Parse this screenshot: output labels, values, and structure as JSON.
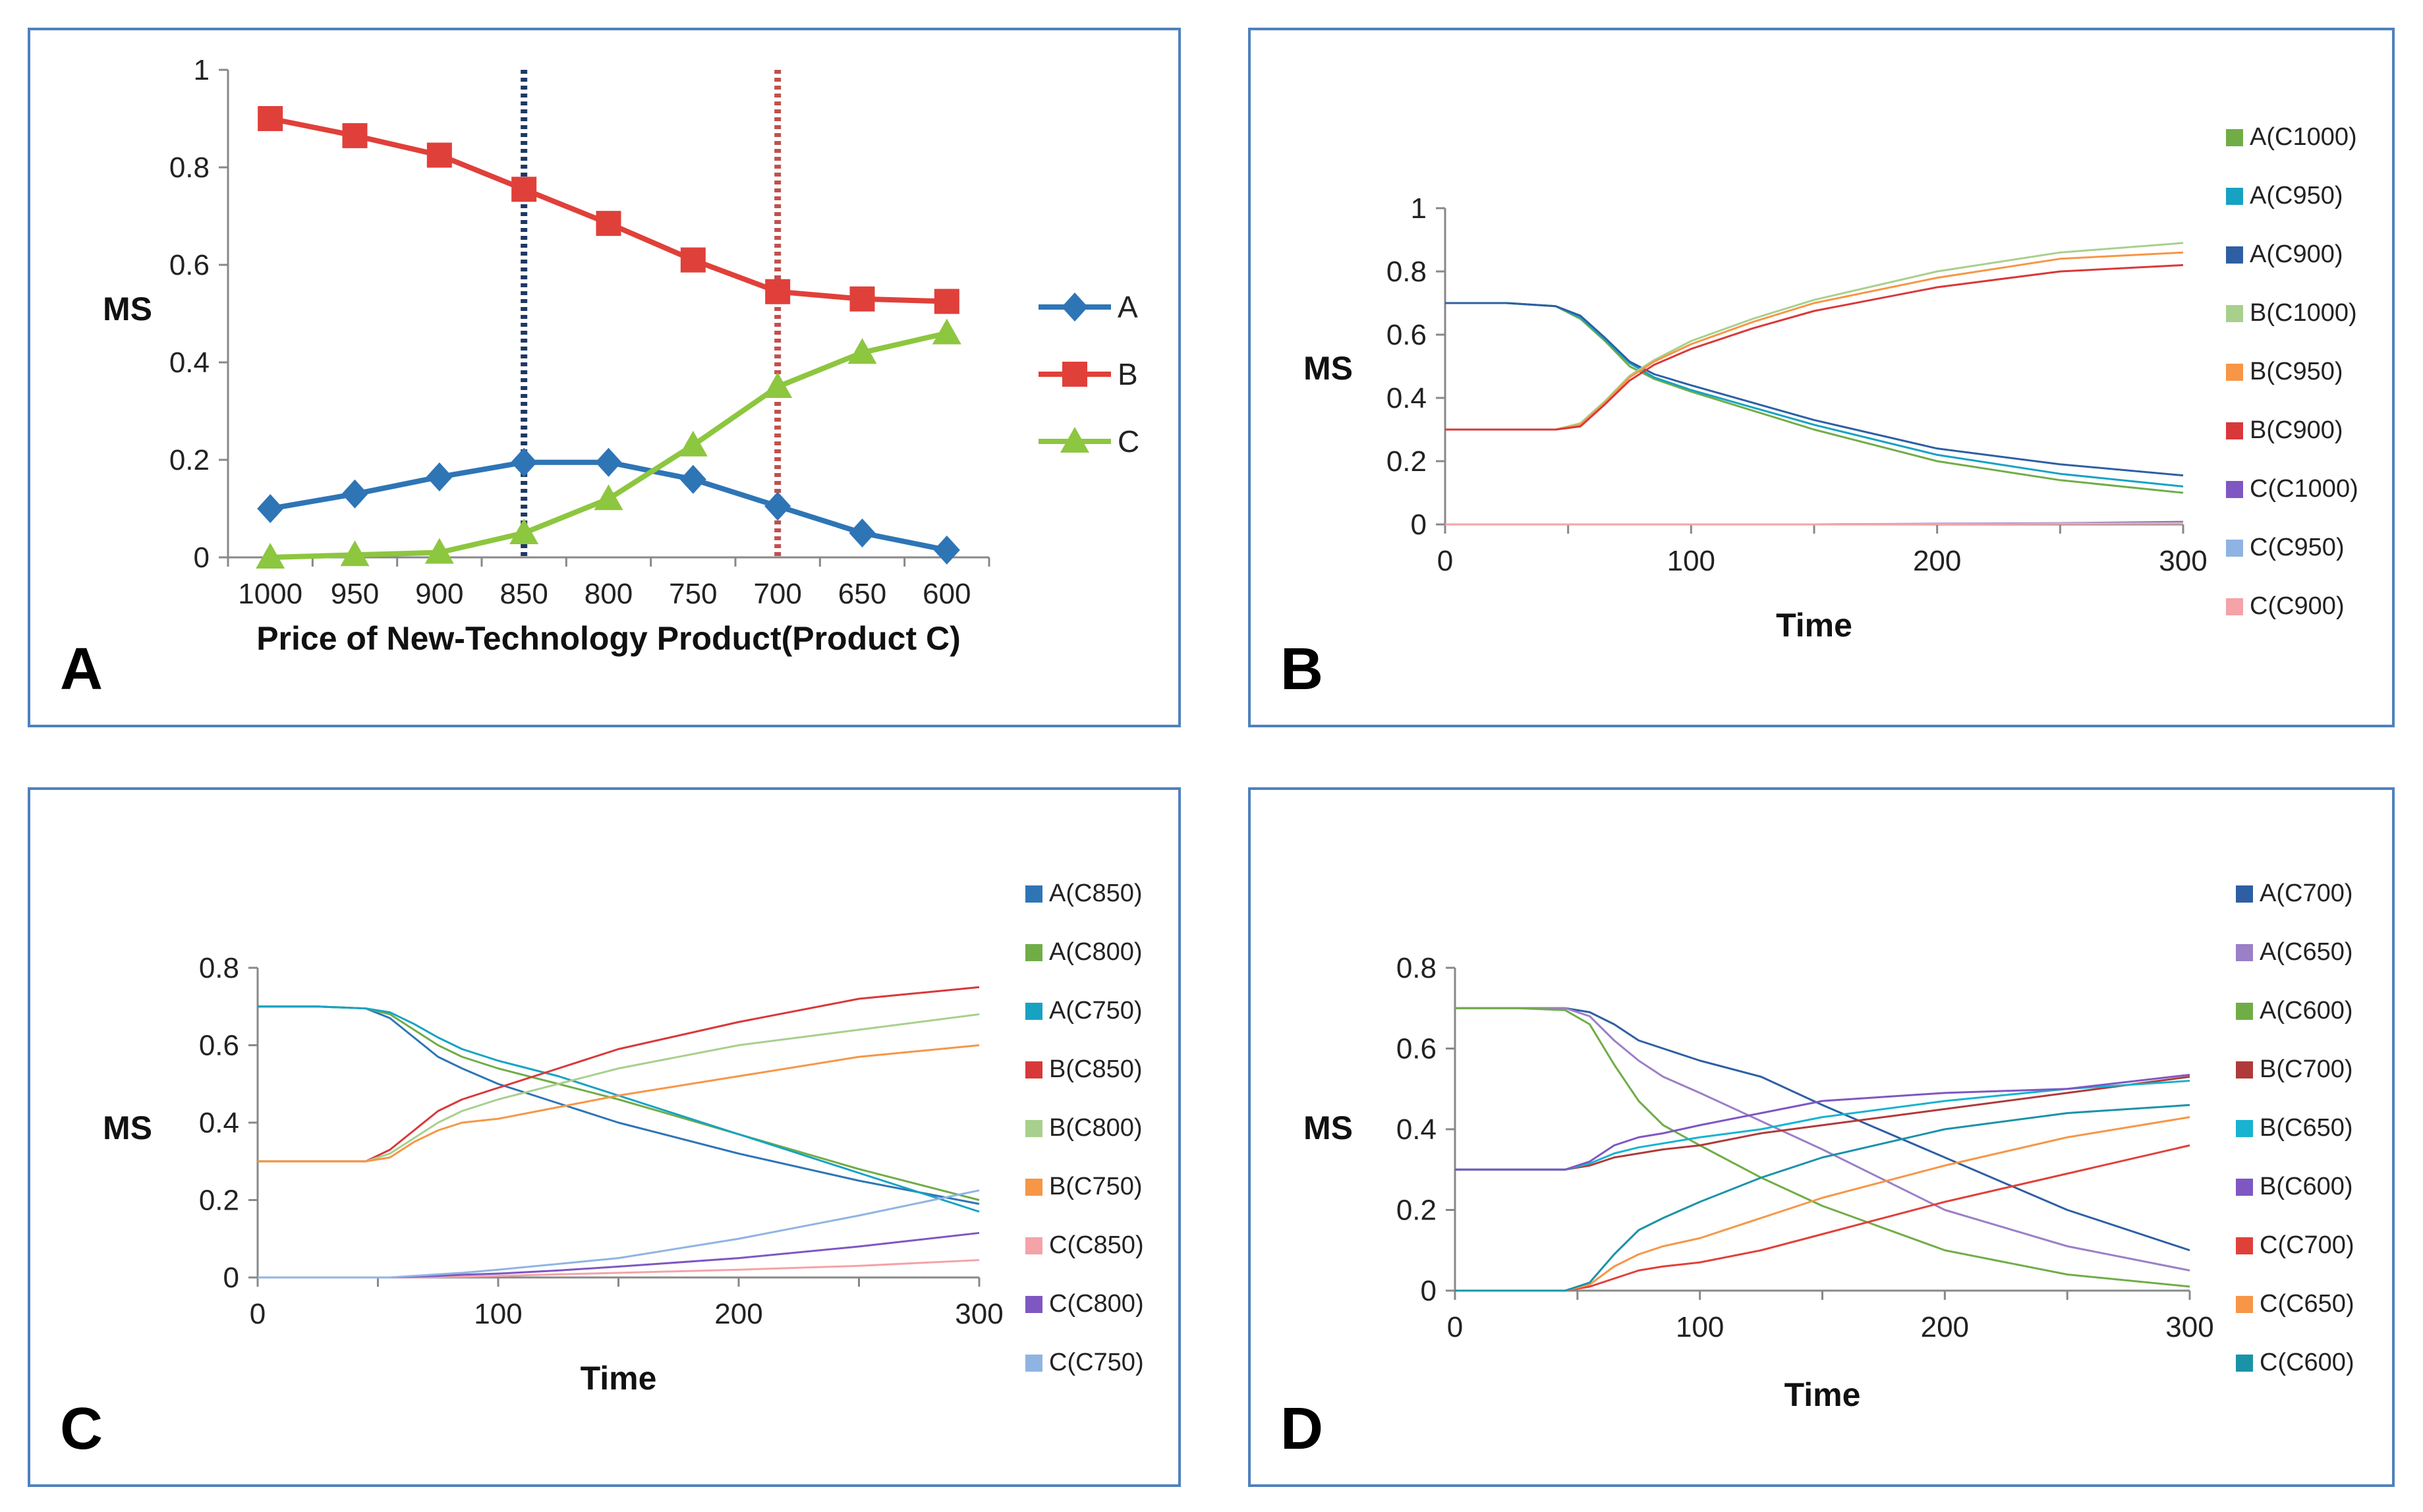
{
  "chart_data": [
    {
      "panel": "A",
      "type": "line",
      "ylabel": "MS",
      "xlabel": "Price of New-Technology Product(Product C)",
      "categories": [
        "1000",
        "950",
        "900",
        "850",
        "800",
        "750",
        "700",
        "650",
        "600"
      ],
      "ylim": [
        0,
        1
      ],
      "yticks": [
        "0",
        "0.2",
        "0.4",
        "0.6",
        "0.8",
        "1"
      ],
      "reference_lines": [
        {
          "at": "850",
          "color": "#1f3864"
        },
        {
          "at": "700",
          "color": "#c0504d"
        }
      ],
      "series": [
        {
          "name": "A",
          "color": "#2e75b6",
          "marker": "diamond",
          "values": [
            0.1,
            0.13,
            0.165,
            0.195,
            0.195,
            0.16,
            0.105,
            0.05,
            0.015
          ]
        },
        {
          "name": "B",
          "color": "#e0403a",
          "marker": "square",
          "values": [
            0.9,
            0.865,
            0.825,
            0.755,
            0.685,
            0.61,
            0.545,
            0.53,
            0.525
          ]
        },
        {
          "name": "C",
          "color": "#8dc63f",
          "marker": "triangle",
          "values": [
            0.0,
            0.005,
            0.01,
            0.05,
            0.12,
            0.23,
            0.35,
            0.42,
            0.46
          ]
        }
      ],
      "legend_position": "right"
    },
    {
      "panel": "B",
      "type": "line",
      "ylabel": "MS",
      "xlabel": "Time",
      "xlim": [
        0,
        300
      ],
      "ylim": [
        0,
        1
      ],
      "xticks": [
        "0",
        "100",
        "200",
        "300"
      ],
      "yticks": [
        "0",
        "0.2",
        "0.4",
        "0.6",
        "0.8",
        "1"
      ],
      "x": [
        0,
        25,
        45,
        55,
        65,
        75,
        85,
        100,
        125,
        150,
        200,
        250,
        300
      ],
      "series": [
        {
          "name": "A(C1000)",
          "color": "#70ad47",
          "values": [
            0.7,
            0.7,
            0.69,
            0.65,
            0.58,
            0.5,
            0.46,
            0.42,
            0.36,
            0.3,
            0.2,
            0.14,
            0.1
          ]
        },
        {
          "name": "A(C950)",
          "color": "#17a2c3",
          "values": [
            0.7,
            0.7,
            0.69,
            0.655,
            0.585,
            0.51,
            0.465,
            0.425,
            0.37,
            0.315,
            0.22,
            0.16,
            0.12
          ]
        },
        {
          "name": "A(C900)",
          "color": "#2e5fa3",
          "values": [
            0.7,
            0.7,
            0.69,
            0.66,
            0.59,
            0.515,
            0.475,
            0.44,
            0.385,
            0.33,
            0.24,
            0.19,
            0.155
          ]
        },
        {
          "name": "B(C1000)",
          "color": "#a8d08d",
          "values": [
            0.3,
            0.3,
            0.3,
            0.32,
            0.39,
            0.47,
            0.52,
            0.58,
            0.65,
            0.71,
            0.8,
            0.86,
            0.89
          ]
        },
        {
          "name": "B(C950)",
          "color": "#f79646",
          "values": [
            0.3,
            0.3,
            0.3,
            0.315,
            0.385,
            0.465,
            0.515,
            0.57,
            0.64,
            0.7,
            0.78,
            0.84,
            0.86
          ]
        },
        {
          "name": "B(C900)",
          "color": "#d9383a",
          "values": [
            0.3,
            0.3,
            0.3,
            0.31,
            0.38,
            0.455,
            0.505,
            0.555,
            0.62,
            0.675,
            0.75,
            0.8,
            0.82
          ]
        },
        {
          "name": "C(C1000)",
          "color": "#7e57c2",
          "values": [
            0,
            0,
            0,
            0,
            0,
            0,
            0,
            0,
            0,
            0,
            0.002,
            0.004,
            0.008
          ]
        },
        {
          "name": "C(C950)",
          "color": "#8fb4e3",
          "values": [
            0,
            0,
            0,
            0,
            0,
            0,
            0,
            0,
            0,
            0,
            0.001,
            0.003,
            0.005
          ]
        },
        {
          "name": "C(C900)",
          "color": "#f4a3a8",
          "values": [
            0,
            0,
            0,
            0,
            0,
            0,
            0,
            0,
            0,
            0,
            0.001,
            0.002,
            0.003
          ]
        }
      ],
      "legend_position": "right"
    },
    {
      "panel": "C",
      "type": "line",
      "ylabel": "MS",
      "xlabel": "Time",
      "xlim": [
        0,
        300
      ],
      "ylim": [
        0,
        0.8
      ],
      "xticks": [
        "0",
        "100",
        "200",
        "300"
      ],
      "yticks": [
        "0",
        "0.2",
        "0.4",
        "0.6",
        "0.8"
      ],
      "x": [
        0,
        25,
        45,
        55,
        65,
        75,
        85,
        100,
        125,
        150,
        200,
        250,
        300
      ],
      "series": [
        {
          "name": "A(C850)",
          "color": "#2e75b6",
          "values": [
            0.7,
            0.7,
            0.695,
            0.67,
            0.62,
            0.57,
            0.54,
            0.5,
            0.45,
            0.4,
            0.32,
            0.25,
            0.19
          ]
        },
        {
          "name": "A(C800)",
          "color": "#70ad47",
          "values": [
            0.7,
            0.7,
            0.695,
            0.68,
            0.64,
            0.6,
            0.57,
            0.54,
            0.5,
            0.46,
            0.37,
            0.28,
            0.2
          ]
        },
        {
          "name": "A(C750)",
          "color": "#17a2c3",
          "values": [
            0.7,
            0.7,
            0.695,
            0.685,
            0.655,
            0.62,
            0.59,
            0.56,
            0.52,
            0.47,
            0.37,
            0.27,
            0.17
          ]
        },
        {
          "name": "B(C850)",
          "color": "#d9383a",
          "values": [
            0.3,
            0.3,
            0.3,
            0.33,
            0.38,
            0.43,
            0.46,
            0.49,
            0.54,
            0.59,
            0.66,
            0.72,
            0.75
          ]
        },
        {
          "name": "B(C800)",
          "color": "#a8d08d",
          "values": [
            0.3,
            0.3,
            0.3,
            0.32,
            0.36,
            0.4,
            0.43,
            0.46,
            0.5,
            0.54,
            0.6,
            0.64,
            0.68
          ]
        },
        {
          "name": "B(C750)",
          "color": "#f79646",
          "values": [
            0.3,
            0.3,
            0.3,
            0.31,
            0.35,
            0.38,
            0.4,
            0.41,
            0.44,
            0.47,
            0.52,
            0.57,
            0.6
          ]
        },
        {
          "name": "C(C850)",
          "color": "#f4a3a8",
          "values": [
            0,
            0,
            0,
            0,
            0,
            0.001,
            0.002,
            0.004,
            0.008,
            0.012,
            0.02,
            0.03,
            0.045
          ]
        },
        {
          "name": "C(C800)",
          "color": "#7e57c2",
          "values": [
            0,
            0,
            0,
            0,
            0.002,
            0.004,
            0.007,
            0.01,
            0.018,
            0.028,
            0.05,
            0.08,
            0.115
          ]
        },
        {
          "name": "C(C750)",
          "color": "#8fb4e3",
          "values": [
            0,
            0,
            0,
            0,
            0.004,
            0.008,
            0.012,
            0.02,
            0.035,
            0.05,
            0.1,
            0.16,
            0.225
          ]
        }
      ],
      "legend_position": "right"
    },
    {
      "panel": "D",
      "type": "line",
      "ylabel": "MS",
      "xlabel": "Time",
      "xlim": [
        0,
        300
      ],
      "ylim": [
        0,
        0.8
      ],
      "xticks": [
        "0",
        "100",
        "200",
        "300"
      ],
      "yticks": [
        "0",
        "0.2",
        "0.4",
        "0.6",
        "0.8"
      ],
      "x": [
        0,
        25,
        45,
        55,
        65,
        75,
        85,
        100,
        125,
        150,
        200,
        250,
        300
      ],
      "series": [
        {
          "name": "A(C700)",
          "color": "#2e5fa3",
          "values": [
            0.7,
            0.7,
            0.7,
            0.69,
            0.66,
            0.62,
            0.6,
            0.57,
            0.53,
            0.46,
            0.33,
            0.2,
            0.1
          ]
        },
        {
          "name": "A(C650)",
          "color": "#9b7fc7",
          "values": [
            0.7,
            0.7,
            0.7,
            0.68,
            0.62,
            0.57,
            0.53,
            0.49,
            0.42,
            0.35,
            0.2,
            0.11,
            0.05
          ]
        },
        {
          "name": "A(C600)",
          "color": "#70ad47",
          "values": [
            0.7,
            0.7,
            0.695,
            0.66,
            0.56,
            0.47,
            0.41,
            0.36,
            0.28,
            0.21,
            0.1,
            0.04,
            0.01
          ]
        },
        {
          "name": "B(C700)",
          "color": "#b03a3a",
          "values": [
            0.3,
            0.3,
            0.3,
            0.31,
            0.33,
            0.34,
            0.35,
            0.36,
            0.39,
            0.41,
            0.45,
            0.49,
            0.53
          ]
        },
        {
          "name": "B(C650)",
          "color": "#17b3d1",
          "values": [
            0.3,
            0.3,
            0.3,
            0.315,
            0.34,
            0.355,
            0.365,
            0.38,
            0.4,
            0.43,
            0.47,
            0.5,
            0.52
          ]
        },
        {
          "name": "B(C600)",
          "color": "#7e57c2",
          "values": [
            0.3,
            0.3,
            0.3,
            0.32,
            0.36,
            0.38,
            0.39,
            0.41,
            0.44,
            0.47,
            0.49,
            0.5,
            0.535
          ]
        },
        {
          "name": "C(C700)",
          "color": "#e0403a",
          "values": [
            0,
            0,
            0,
            0.01,
            0.03,
            0.05,
            0.06,
            0.07,
            0.1,
            0.14,
            0.22,
            0.29,
            0.36
          ]
        },
        {
          "name": "C(C650)",
          "color": "#f79646",
          "values": [
            0,
            0,
            0,
            0.015,
            0.06,
            0.09,
            0.11,
            0.13,
            0.18,
            0.23,
            0.31,
            0.38,
            0.43
          ]
        },
        {
          "name": "C(C600)",
          "color": "#1a93a8",
          "values": [
            0,
            0,
            0,
            0.02,
            0.09,
            0.15,
            0.18,
            0.22,
            0.28,
            0.33,
            0.4,
            0.44,
            0.46
          ]
        }
      ],
      "legend_position": "right"
    }
  ]
}
